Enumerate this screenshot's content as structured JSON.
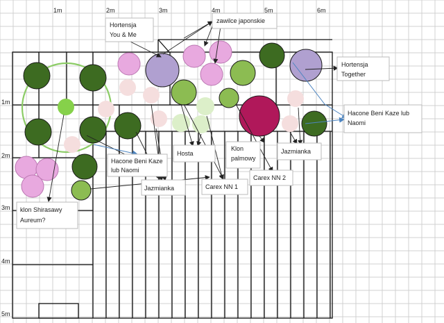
{
  "axis": {
    "top": [
      "1m",
      "2m",
      "3m",
      "4m",
      "5m",
      "6m"
    ],
    "left": [
      "1m",
      "2m",
      "3m",
      "4m",
      "5m"
    ]
  },
  "colors": {
    "dark_green": "#3d6b21",
    "light_green": "#8cbc52",
    "bright_green": "#86d14a",
    "pale_green": "#dcefc9",
    "pink": "#e8a9df",
    "light_pink": "#f5dede",
    "lavender": "#b0a0d0",
    "crimson": "#b0185a",
    "ring_green": "#8ccc66",
    "arrow_blue": "#4d85c1"
  },
  "labels": {
    "hortensja_you_me": [
      "Hortensja",
      "You & Me"
    ],
    "zawilce": [
      "zawilce japonskie"
    ],
    "hortensja_together": [
      "Hortensja",
      "Together"
    ],
    "hacone_right": [
      "Hacone Beni Kaze lub",
      "Naomi"
    ],
    "hacone_left": [
      "Hacone Beni Kaze",
      "lub Naomi"
    ],
    "hosta": [
      "Hosta"
    ],
    "klon_palmowy": [
      "Klon",
      "palmowy"
    ],
    "jazmianka_right": [
      "Jazmianka"
    ],
    "jazmianka_left": [
      "Jazmianka"
    ],
    "carex_1": [
      "Carex NN 1"
    ],
    "carex_2": [
      "Carex NN 2"
    ],
    "klon_shirasawy": [
      "klon Shirasawy",
      "Aureum?"
    ]
  }
}
